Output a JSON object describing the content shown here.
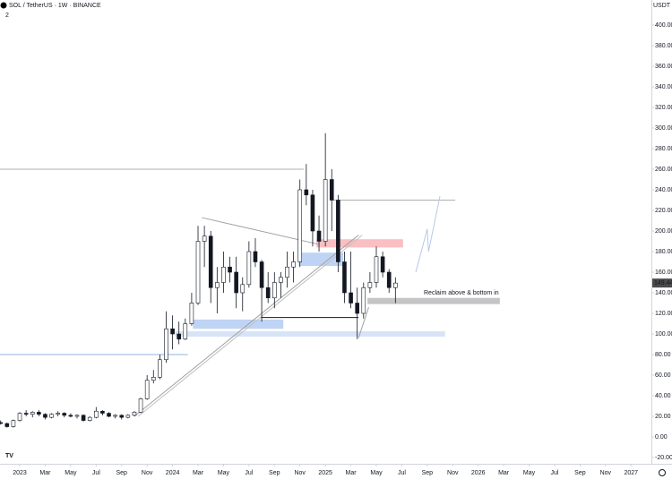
{
  "chart_data": {
    "type": "candlestick",
    "title": "SOL / TetherUS · 1W · BINANCE",
    "subtitle": "2",
    "currency": "USDT",
    "last_price": 149.44,
    "last_price_label": "149.44",
    "annotation": "Reclaim above & bottom in",
    "up_color": "#ffffff",
    "down_color": "#131722",
    "x": [
      -1.5,
      -1,
      -0.5,
      0,
      0.5,
      1,
      1.5,
      2,
      2.5,
      3,
      3.5,
      4,
      4.5,
      5,
      5.5,
      6,
      6.5,
      7,
      7.5,
      8,
      8.5,
      9,
      9.5,
      10,
      10.5,
      11,
      11.5,
      12,
      12.5,
      13,
      13.5,
      14,
      14.5,
      15,
      15.5,
      16,
      16.5,
      17,
      17.5,
      18,
      18.5,
      19,
      19.5,
      20,
      20.5,
      21,
      21.5,
      22,
      22.5,
      23,
      23.5,
      24,
      24.5,
      25,
      25.5,
      26,
      26.5,
      27,
      27.5,
      28,
      28.5,
      29,
      29.5
    ],
    "open": [
      14,
      13,
      10,
      16,
      23,
      22,
      24,
      22,
      19,
      22,
      23,
      21,
      20,
      21,
      16,
      19,
      25,
      23,
      20,
      21,
      19,
      21,
      24,
      37,
      55,
      58,
      75,
      105,
      100,
      95,
      110,
      130,
      190,
      195,
      145,
      150,
      165,
      160,
      140,
      148,
      180,
      170,
      145,
      135,
      150,
      155,
      165,
      170,
      240,
      235,
      200,
      190,
      250,
      230,
      170,
      140,
      130,
      120,
      145,
      150,
      175,
      160,
      145
    ],
    "high": [
      16,
      14,
      17,
      24,
      26,
      25,
      26,
      23,
      23,
      25,
      24,
      23,
      22,
      22,
      20,
      29,
      26,
      24,
      22,
      22,
      22,
      25,
      38,
      60,
      65,
      80,
      122,
      118,
      112,
      115,
      140,
      205,
      205,
      200,
      165,
      180,
      175,
      175,
      155,
      190,
      193,
      172,
      160,
      160,
      160,
      180,
      180,
      250,
      265,
      240,
      215,
      295,
      260,
      235,
      180,
      180,
      145,
      150,
      160,
      185,
      180,
      163,
      155
    ],
    "low": [
      12,
      9,
      9,
      15,
      20,
      19,
      20,
      17,
      18,
      20,
      19,
      19,
      18,
      15,
      15,
      18,
      21,
      19,
      18,
      17,
      18,
      20,
      23,
      36,
      52,
      56,
      72,
      85,
      90,
      94,
      108,
      128,
      165,
      130,
      120,
      140,
      150,
      125,
      122,
      145,
      165,
      112,
      130,
      125,
      135,
      145,
      150,
      165,
      225,
      185,
      180,
      185,
      200,
      160,
      130,
      125,
      95,
      115,
      140,
      145,
      155,
      140,
      130
    ],
    "close": [
      13,
      10,
      16,
      23,
      22,
      24,
      22,
      19,
      22,
      23,
      21,
      20,
      21,
      16,
      19,
      25,
      23,
      20,
      21,
      19,
      21,
      24,
      37,
      55,
      58,
      75,
      105,
      100,
      95,
      110,
      130,
      190,
      195,
      145,
      150,
      165,
      160,
      140,
      148,
      180,
      170,
      145,
      135,
      150,
      155,
      165,
      170,
      240,
      235,
      200,
      190,
      250,
      230,
      170,
      140,
      130,
      120,
      145,
      150,
      175,
      160,
      145,
      149.44
    ],
    "zones": [
      {
        "x": [
          23.3,
          30.1
        ],
        "y": [
          184,
          192
        ],
        "color": "#f7a9ae"
      },
      {
        "x": [
          21.9,
          25.4
        ],
        "y": [
          166,
          179
        ],
        "color": "#a9c6f2"
      },
      {
        "x": [
          13.6,
          20.7
        ],
        "y": [
          105,
          114
        ],
        "color": "#a9c6f2"
      },
      {
        "x": [
          12.2,
          33.4
        ],
        "y": [
          97.4,
          102.6
        ],
        "color": "#c9dbf5"
      },
      {
        "x": [
          27.3,
          37.7
        ],
        "y": [
          129,
          135
        ],
        "color": "#b2b2b2"
      }
    ],
    "lines": [
      {
        "x": [
          -1.55,
          22.3
        ],
        "y": [
          260,
          260
        ],
        "color": "#b0b0b0"
      },
      {
        "x": [
          -1.55,
          13.2
        ],
        "y": [
          80,
          80
        ],
        "color": "#90b4e0"
      },
      {
        "x": [
          24.6,
          34.2
        ],
        "y": [
          230,
          230
        ],
        "color": "#b0b0b0"
      },
      {
        "x": [
          18.9,
          26.6
        ],
        "y": [
          116,
          116
        ],
        "color": "#131722"
      },
      {
        "x": [
          14.3,
          23.5
        ],
        "y": [
          213,
          187
        ],
        "color": "#a0a0a0"
      },
      {
        "x": [
          9,
          26.6
        ],
        "y": [
          20,
          196
        ],
        "color": "#a0a0a0"
      },
      {
        "x": [
          9.3,
          26.9
        ],
        "y": [
          20,
          196
        ],
        "color": "#c0c0c0"
      },
      {
        "x": [
          26.6,
          27.4
        ],
        "y": [
          96,
          126
        ],
        "color": "#a0a0a0"
      },
      {
        "x": [
          31.1,
          32,
          32.1,
          33
        ],
        "y": [
          160,
          202,
          180,
          234
        ],
        "color": "#b8c8e8"
      }
    ],
    "xlim": [
      -1.55,
      49.6
    ],
    "ylim": [
      -40,
      420
    ],
    "xticks": [
      {
        "value": 0,
        "label": "2023"
      },
      {
        "value": 2,
        "label": "Mar"
      },
      {
        "value": 4,
        "label": "May"
      },
      {
        "value": 6,
        "label": "Jul"
      },
      {
        "value": 8,
        "label": "Sep"
      },
      {
        "value": 10,
        "label": "Nov"
      },
      {
        "value": 12,
        "label": "2024"
      },
      {
        "value": 14,
        "label": "Mar"
      },
      {
        "value": 16,
        "label": "May"
      },
      {
        "value": 18,
        "label": "Jul"
      },
      {
        "value": 20,
        "label": "Sep"
      },
      {
        "value": 22,
        "label": "Nov"
      },
      {
        "value": 24,
        "label": "2025"
      },
      {
        "value": 26,
        "label": "Mar"
      },
      {
        "value": 28,
        "label": "May"
      },
      {
        "value": 30,
        "label": "Jul"
      },
      {
        "value": 32,
        "label": "Sep"
      },
      {
        "value": 34,
        "label": "Nov"
      },
      {
        "value": 36,
        "label": "2026"
      },
      {
        "value": 38,
        "label": "Mar"
      },
      {
        "value": 40,
        "label": "May"
      },
      {
        "value": 42,
        "label": "Jul"
      },
      {
        "value": 44,
        "label": "Sep"
      },
      {
        "value": 46,
        "label": "Nov"
      },
      {
        "value": 48,
        "label": "2027"
      }
    ],
    "yticks": [
      {
        "value": -20,
        "label": "-20.00"
      },
      {
        "value": 0,
        "label": "0.00"
      },
      {
        "value": 20,
        "label": "20.00"
      },
      {
        "value": 40,
        "label": "40.00"
      },
      {
        "value": 60,
        "label": "60.00"
      },
      {
        "value": 80,
        "label": "80.00"
      },
      {
        "value": 100,
        "label": "100.00"
      },
      {
        "value": 120,
        "label": "120.00"
      },
      {
        "value": 140,
        "label": "140.00"
      },
      {
        "value": 160,
        "label": "160.00"
      },
      {
        "value": 180,
        "label": "180.00"
      },
      {
        "value": 200,
        "label": "200.00"
      },
      {
        "value": 220,
        "label": "220.00"
      },
      {
        "value": 240,
        "label": "240.00"
      },
      {
        "value": 260,
        "label": "260.00"
      },
      {
        "value": 280,
        "label": "280.00"
      },
      {
        "value": 300,
        "label": "300.00"
      },
      {
        "value": 320,
        "label": "320.00"
      },
      {
        "value": 340,
        "label": "340.00"
      },
      {
        "value": 360,
        "label": "360.00"
      },
      {
        "value": 380,
        "label": "380.00"
      },
      {
        "value": 400,
        "label": "400.00"
      }
    ]
  }
}
